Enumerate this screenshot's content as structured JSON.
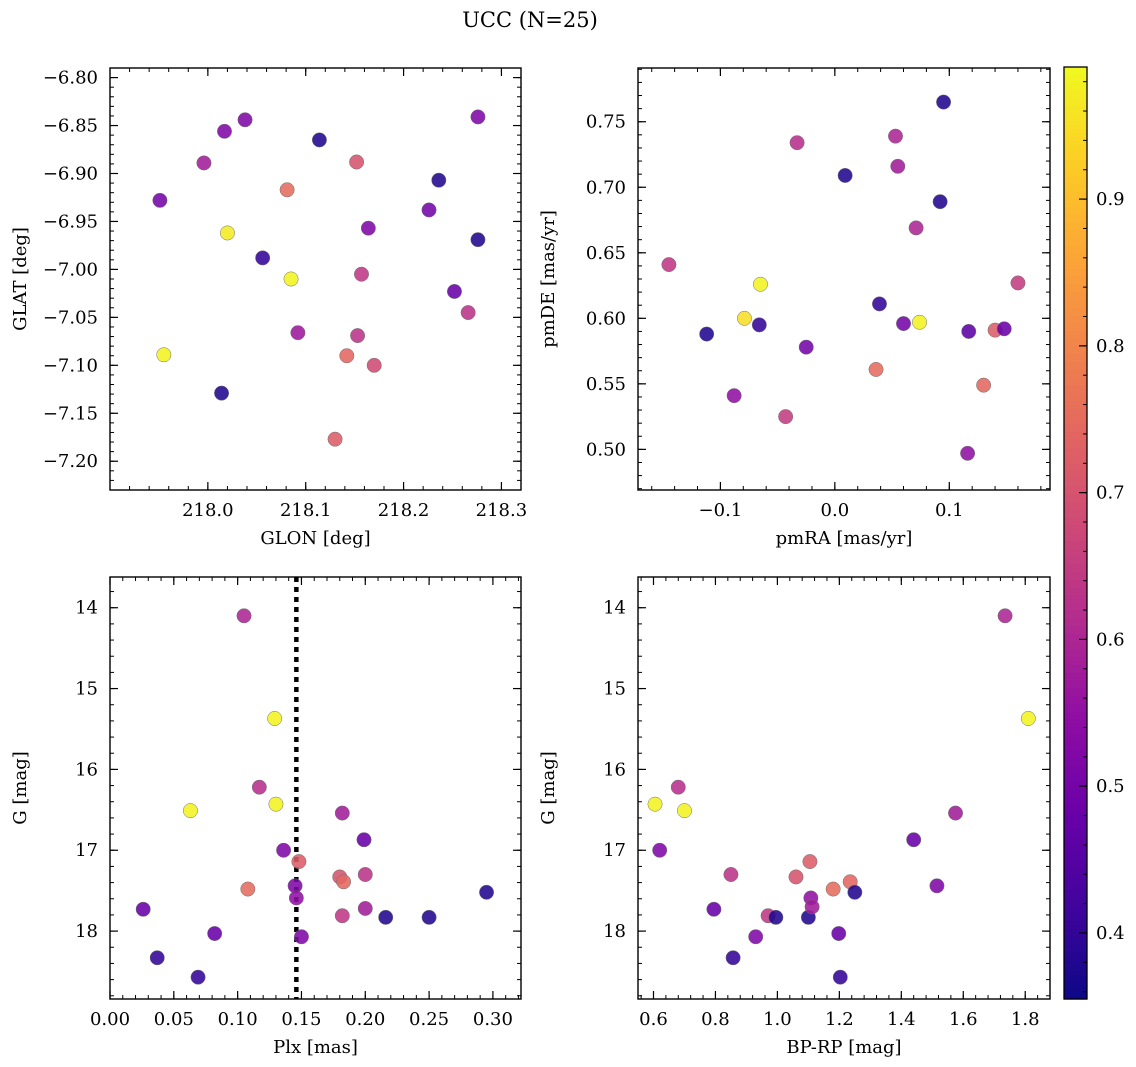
{
  "figure": {
    "title": "UCC (N=25)"
  },
  "colorbar": {
    "vmin": 0.355,
    "vmax": 0.99,
    "ticks": [
      0.4,
      0.5,
      0.6,
      0.7,
      0.8,
      0.9
    ],
    "tick_labels": [
      "0.4",
      "0.5",
      "0.6",
      "0.7",
      "0.8",
      "0.9"
    ],
    "colormap": "plasma"
  },
  "chart_data": [
    {
      "type": "scatter",
      "id": "glon-glat",
      "xlabel": "GLON [deg]",
      "ylabel": "GLAT [deg]",
      "xlim": [
        217.9,
        218.32
      ],
      "ylim": [
        -7.23,
        -6.79
      ],
      "xticks": [
        218.0,
        218.1,
        218.2,
        218.3
      ],
      "xtick_labels": [
        "218.0",
        "218.1",
        "218.2",
        "218.3"
      ],
      "yticks": [
        -6.8,
        -6.85,
        -6.9,
        -6.95,
        -7.0,
        -7.05,
        -7.1,
        -7.15,
        -7.2
      ],
      "ytick_labels": [
        "−6.80",
        "−6.85",
        "−6.90",
        "−6.95",
        "−7.00",
        "−7.05",
        "−7.10",
        "−7.15",
        "−7.20"
      ],
      "points": [
        {
          "x": 217.951,
          "y": -6.928,
          "c": 0.5
        },
        {
          "x": 217.955,
          "y": -7.089,
          "c": 0.98
        },
        {
          "x": 217.996,
          "y": -6.889,
          "c": 0.58
        },
        {
          "x": 218.014,
          "y": -7.129,
          "c": 0.38
        },
        {
          "x": 218.017,
          "y": -6.856,
          "c": 0.52
        },
        {
          "x": 218.02,
          "y": -6.962,
          "c": 0.97
        },
        {
          "x": 218.038,
          "y": -6.844,
          "c": 0.52
        },
        {
          "x": 218.056,
          "y": -6.988,
          "c": 0.4
        },
        {
          "x": 218.081,
          "y": -6.917,
          "c": 0.75
        },
        {
          "x": 218.085,
          "y": -7.01,
          "c": 0.98
        },
        {
          "x": 218.092,
          "y": -7.066,
          "c": 0.57
        },
        {
          "x": 218.114,
          "y": -6.865,
          "c": 0.38
        },
        {
          "x": 218.13,
          "y": -7.177,
          "c": 0.72
        },
        {
          "x": 218.142,
          "y": -7.09,
          "c": 0.74
        },
        {
          "x": 218.152,
          "y": -6.888,
          "c": 0.7
        },
        {
          "x": 218.153,
          "y": -7.069,
          "c": 0.63
        },
        {
          "x": 218.157,
          "y": -7.005,
          "c": 0.64
        },
        {
          "x": 218.164,
          "y": -6.957,
          "c": 0.52
        },
        {
          "x": 218.17,
          "y": -7.1,
          "c": 0.68
        },
        {
          "x": 218.226,
          "y": -6.938,
          "c": 0.5
        },
        {
          "x": 218.236,
          "y": -6.907,
          "c": 0.38
        },
        {
          "x": 218.252,
          "y": -7.023,
          "c": 0.48
        },
        {
          "x": 218.266,
          "y": -7.045,
          "c": 0.63
        },
        {
          "x": 218.276,
          "y": -6.841,
          "c": 0.52
        },
        {
          "x": 218.276,
          "y": -6.969,
          "c": 0.38
        }
      ]
    },
    {
      "type": "scatter",
      "id": "pmra-pmde",
      "xlabel": "pmRA [mas/yr]",
      "ylabel": "pmDE [mas/yr]",
      "xlim": [
        -0.172,
        0.188
      ],
      "ylim": [
        0.469,
        0.791
      ],
      "xticks": [
        -0.1,
        0.0,
        0.1
      ],
      "xtick_labels": [
        "−0.1",
        "0.0",
        "0.1"
      ],
      "yticks": [
        0.5,
        0.55,
        0.6,
        0.65,
        0.7,
        0.75
      ],
      "ytick_labels": [
        "0.50",
        "0.55",
        "0.60",
        "0.65",
        "0.70",
        "0.75"
      ],
      "points": [
        {
          "x": -0.145,
          "y": 0.641,
          "c": 0.64
        },
        {
          "x": -0.112,
          "y": 0.588,
          "c": 0.38
        },
        {
          "x": -0.088,
          "y": 0.541,
          "c": 0.55
        },
        {
          "x": -0.079,
          "y": 0.6,
          "c": 0.95
        },
        {
          "x": -0.066,
          "y": 0.595,
          "c": 0.4
        },
        {
          "x": -0.065,
          "y": 0.626,
          "c": 0.98
        },
        {
          "x": -0.043,
          "y": 0.525,
          "c": 0.65
        },
        {
          "x": -0.033,
          "y": 0.734,
          "c": 0.62
        },
        {
          "x": -0.025,
          "y": 0.578,
          "c": 0.5
        },
        {
          "x": 0.009,
          "y": 0.709,
          "c": 0.38
        },
        {
          "x": 0.036,
          "y": 0.561,
          "c": 0.75
        },
        {
          "x": 0.039,
          "y": 0.611,
          "c": 0.4
        },
        {
          "x": 0.053,
          "y": 0.739,
          "c": 0.6
        },
        {
          "x": 0.055,
          "y": 0.716,
          "c": 0.58
        },
        {
          "x": 0.06,
          "y": 0.596,
          "c": 0.5
        },
        {
          "x": 0.071,
          "y": 0.669,
          "c": 0.6
        },
        {
          "x": 0.074,
          "y": 0.597,
          "c": 0.98
        },
        {
          "x": 0.092,
          "y": 0.689,
          "c": 0.38
        },
        {
          "x": 0.095,
          "y": 0.765,
          "c": 0.38
        },
        {
          "x": 0.116,
          "y": 0.497,
          "c": 0.55
        },
        {
          "x": 0.117,
          "y": 0.59,
          "c": 0.46
        },
        {
          "x": 0.13,
          "y": 0.549,
          "c": 0.74
        },
        {
          "x": 0.14,
          "y": 0.591,
          "c": 0.72
        },
        {
          "x": 0.148,
          "y": 0.592,
          "c": 0.48
        },
        {
          "x": 0.16,
          "y": 0.627,
          "c": 0.65
        }
      ]
    },
    {
      "type": "scatter",
      "id": "plx-g",
      "xlabel": "Plx [mas]",
      "ylabel": "G [mag]",
      "xlim": [
        0.0,
        0.322
      ],
      "ylim": [
        18.84,
        13.62
      ],
      "xticks": [
        0.0,
        0.05,
        0.1,
        0.15,
        0.2,
        0.25,
        0.3
      ],
      "xtick_labels": [
        "0.00",
        "0.05",
        "0.10",
        "0.15",
        "0.20",
        "0.25",
        "0.30"
      ],
      "yticks": [
        14,
        15,
        16,
        17,
        18
      ],
      "ytick_labels": [
        "14",
        "15",
        "16",
        "17",
        "18"
      ],
      "vline": 0.146,
      "points": [
        {
          "x": 0.026,
          "y": 17.73,
          "c": 0.48
        },
        {
          "x": 0.037,
          "y": 18.33,
          "c": 0.4
        },
        {
          "x": 0.063,
          "y": 16.51,
          "c": 0.98
        },
        {
          "x": 0.069,
          "y": 18.57,
          "c": 0.4
        },
        {
          "x": 0.082,
          "y": 18.03,
          "c": 0.48
        },
        {
          "x": 0.105,
          "y": 14.1,
          "c": 0.6
        },
        {
          "x": 0.108,
          "y": 17.48,
          "c": 0.75
        },
        {
          "x": 0.117,
          "y": 16.22,
          "c": 0.62
        },
        {
          "x": 0.129,
          "y": 15.37,
          "c": 0.98
        },
        {
          "x": 0.13,
          "y": 16.43,
          "c": 0.98
        },
        {
          "x": 0.136,
          "y": 17.0,
          "c": 0.52
        },
        {
          "x": 0.145,
          "y": 17.44,
          "c": 0.52
        },
        {
          "x": 0.146,
          "y": 17.59,
          "c": 0.55
        },
        {
          "x": 0.148,
          "y": 17.14,
          "c": 0.72
        },
        {
          "x": 0.15,
          "y": 18.07,
          "c": 0.52
        },
        {
          "x": 0.18,
          "y": 17.33,
          "c": 0.7
        },
        {
          "x": 0.182,
          "y": 16.54,
          "c": 0.58
        },
        {
          "x": 0.182,
          "y": 17.81,
          "c": 0.64
        },
        {
          "x": 0.183,
          "y": 17.39,
          "c": 0.74
        },
        {
          "x": 0.199,
          "y": 16.87,
          "c": 0.48
        },
        {
          "x": 0.2,
          "y": 17.3,
          "c": 0.63
        },
        {
          "x": 0.2,
          "y": 17.72,
          "c": 0.58
        },
        {
          "x": 0.216,
          "y": 17.83,
          "c": 0.38
        },
        {
          "x": 0.25,
          "y": 17.83,
          "c": 0.38
        },
        {
          "x": 0.295,
          "y": 17.52,
          "c": 0.38
        }
      ]
    },
    {
      "type": "scatter",
      "id": "bprp-g",
      "xlabel": "BP-RP [mag]",
      "ylabel": "G [mag]",
      "xlim": [
        0.55,
        1.88
      ],
      "ylim": [
        18.84,
        13.62
      ],
      "xticks": [
        0.6,
        0.8,
        1.0,
        1.2,
        1.4,
        1.6,
        1.8
      ],
      "xtick_labels": [
        "0.6",
        "0.8",
        "1.0",
        "1.2",
        "1.4",
        "1.6",
        "1.8"
      ],
      "yticks": [
        14,
        15,
        16,
        17,
        18
      ],
      "ytick_labels": [
        "14",
        "15",
        "16",
        "17",
        "18"
      ],
      "points": [
        {
          "x": 0.605,
          "y": 16.43,
          "c": 0.98
        },
        {
          "x": 0.62,
          "y": 17.0,
          "c": 0.52
        },
        {
          "x": 0.68,
          "y": 16.22,
          "c": 0.62
        },
        {
          "x": 0.7,
          "y": 16.51,
          "c": 0.98
        },
        {
          "x": 0.795,
          "y": 17.73,
          "c": 0.48
        },
        {
          "x": 0.85,
          "y": 17.3,
          "c": 0.63
        },
        {
          "x": 0.857,
          "y": 18.33,
          "c": 0.4
        },
        {
          "x": 0.93,
          "y": 18.07,
          "c": 0.52
        },
        {
          "x": 0.97,
          "y": 17.81,
          "c": 0.64
        },
        {
          "x": 0.995,
          "y": 17.83,
          "c": 0.38
        },
        {
          "x": 1.06,
          "y": 17.33,
          "c": 0.7
        },
        {
          "x": 1.1,
          "y": 17.83,
          "c": 0.38
        },
        {
          "x": 1.105,
          "y": 17.14,
          "c": 0.72
        },
        {
          "x": 1.108,
          "y": 17.59,
          "c": 0.55
        },
        {
          "x": 1.112,
          "y": 17.7,
          "c": 0.58
        },
        {
          "x": 1.18,
          "y": 17.48,
          "c": 0.75
        },
        {
          "x": 1.198,
          "y": 18.03,
          "c": 0.48
        },
        {
          "x": 1.203,
          "y": 18.57,
          "c": 0.4
        },
        {
          "x": 1.235,
          "y": 17.39,
          "c": 0.74
        },
        {
          "x": 1.25,
          "y": 17.52,
          "c": 0.38
        },
        {
          "x": 1.44,
          "y": 16.87,
          "c": 0.48
        },
        {
          "x": 1.515,
          "y": 17.44,
          "c": 0.52
        },
        {
          "x": 1.575,
          "y": 16.54,
          "c": 0.58
        },
        {
          "x": 1.735,
          "y": 14.1,
          "c": 0.6
        },
        {
          "x": 1.81,
          "y": 15.37,
          "c": 0.98
        }
      ]
    }
  ]
}
